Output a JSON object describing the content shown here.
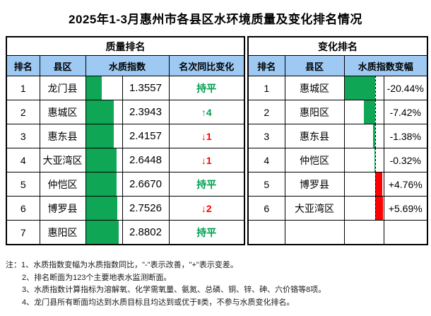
{
  "title": "2025年1-3月惠州市各县区水环境质量及变化排名情况",
  "colors": {
    "header_blue": "#9DC9F3",
    "bar_green": "#0FA655",
    "bar_red": "#FF0000",
    "text_green": "#00A050",
    "text_red": "#FF0000"
  },
  "quality_table": {
    "title": "质量排名",
    "columns": {
      "rank": "排名",
      "district": "县区",
      "index": "水质指数",
      "change": "名次同比变化"
    },
    "bar_scale_max": 2.8802,
    "bar_max_percent": 92,
    "rows": [
      {
        "rank": "1",
        "district": "龙门县",
        "index": 1.3557,
        "index_text": "1.3557",
        "change": "持平",
        "change_color": "green"
      },
      {
        "rank": "2",
        "district": "惠城区",
        "index": 2.3943,
        "index_text": "2.3943",
        "change": "↑4",
        "change_color": "green"
      },
      {
        "rank": "3",
        "district": "惠东县",
        "index": 2.4157,
        "index_text": "2.4157",
        "change": "↓1",
        "change_color": "red"
      },
      {
        "rank": "4",
        "district": "大亚湾区",
        "index": 2.6448,
        "index_text": "2.6448",
        "change": "↓1",
        "change_color": "red"
      },
      {
        "rank": "5",
        "district": "仲恺区",
        "index": 2.667,
        "index_text": "2.6670",
        "change": "持平",
        "change_color": "green"
      },
      {
        "rank": "6",
        "district": "博罗县",
        "index": 2.7526,
        "index_text": "2.7526",
        "change": "↓2",
        "change_color": "red"
      },
      {
        "rank": "7",
        "district": "惠阳区",
        "index": 2.8802,
        "index_text": "2.8802",
        "change": "持平",
        "change_color": "green"
      }
    ]
  },
  "change_table": {
    "title": "变化排名",
    "columns": {
      "rank": "排名",
      "district": "县区",
      "delta": "水质指数变幅"
    },
    "axis_percent": 78.2,
    "scale_span": 26.13,
    "rows": [
      {
        "rank": "1",
        "district": "惠城区",
        "delta": -20.44,
        "delta_text": "-20.44%"
      },
      {
        "rank": "2",
        "district": "惠阳区",
        "delta": -7.42,
        "delta_text": "-7.42%"
      },
      {
        "rank": "3",
        "district": "惠东县",
        "delta": -1.38,
        "delta_text": "-1.38%"
      },
      {
        "rank": "4",
        "district": "仲恺区",
        "delta": -0.32,
        "delta_text": "-0.32%"
      },
      {
        "rank": "5",
        "district": "博罗县",
        "delta": 4.76,
        "delta_text": "+4.76%"
      },
      {
        "rank": "6",
        "district": "大亚湾区",
        "delta": 5.69,
        "delta_text": "+5.69%"
      }
    ],
    "empty_row": true
  },
  "notes": [
    "注：1、水质指数变幅为水质指数同比，\"-\"表示改善，\"+\"表示变差。",
    "2、排名断面为123个主要地表水监测断面。",
    "3、水质指数计算指标为溶解氧、化学需氧量、氨氮、总磷、铜、锌、砷、六价铬等8项。",
    "4、龙门县所有断面均达到水质目标且均达到或优于Ⅱ类，不参与水质变化排名。"
  ],
  "chart_data": [
    {
      "type": "table",
      "title": "质量排名",
      "columns": [
        "排名",
        "县区",
        "水质指数",
        "名次同比变化"
      ],
      "rows": [
        [
          "1",
          "龙门县",
          1.3557,
          "持平"
        ],
        [
          "2",
          "惠城区",
          2.3943,
          "↑4"
        ],
        [
          "3",
          "惠东县",
          2.4157,
          "↓1"
        ],
        [
          "4",
          "大亚湾区",
          2.6448,
          "↓1"
        ],
        [
          "5",
          "仲恺区",
          2.667,
          "持平"
        ],
        [
          "6",
          "博罗县",
          2.7526,
          "↓2"
        ],
        [
          "7",
          "惠阳区",
          2.8802,
          "持平"
        ]
      ],
      "bar_column": "水质指数",
      "bar_color": "#0FA655",
      "bar_range": [
        0,
        2.8802
      ]
    },
    {
      "type": "bar",
      "title": "变化排名",
      "orientation": "horizontal",
      "categories": [
        "惠城区",
        "惠阳区",
        "惠东县",
        "仲恺区",
        "博罗县",
        "大亚湾区"
      ],
      "values": [
        -20.44,
        -7.42,
        -1.38,
        -0.32,
        4.76,
        5.69
      ],
      "unit": "%",
      "negative_color": "#0FA655",
      "positive_color": "#FF0000",
      "xlim": [
        -20.44,
        5.69
      ]
    }
  ]
}
